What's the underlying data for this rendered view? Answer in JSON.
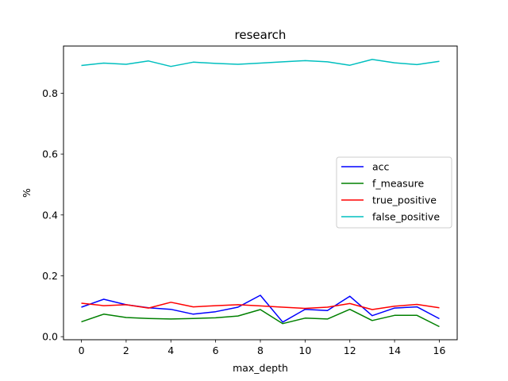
{
  "chart_data": {
    "type": "line",
    "title": "research",
    "xlabel": "max_depth",
    "ylabel": "%",
    "xlim": [
      -0.8,
      16.8
    ],
    "ylim": [
      -0.01,
      0.955
    ],
    "x_ticks": [
      0,
      2,
      4,
      6,
      8,
      10,
      12,
      14,
      16
    ],
    "y_ticks": [
      0.0,
      0.2,
      0.4,
      0.6,
      0.8
    ],
    "grid": false,
    "legend_position": "center-right",
    "x": [
      0,
      1,
      2,
      3,
      4,
      5,
      6,
      7,
      8,
      9,
      10,
      11,
      12,
      13,
      14,
      15,
      16
    ],
    "series": [
      {
        "name": "acc",
        "color": "#0000ff",
        "values": [
          0.097,
          0.123,
          0.105,
          0.095,
          0.09,
          0.074,
          0.082,
          0.097,
          0.136,
          0.048,
          0.09,
          0.086,
          0.133,
          0.069,
          0.094,
          0.098,
          0.059
        ]
      },
      {
        "name": "f_measure",
        "color": "#008000",
        "values": [
          0.049,
          0.074,
          0.063,
          0.06,
          0.058,
          0.06,
          0.062,
          0.068,
          0.089,
          0.043,
          0.061,
          0.058,
          0.09,
          0.053,
          0.07,
          0.07,
          0.033
        ]
      },
      {
        "name": "true_positive",
        "color": "#ff0000",
        "values": [
          0.11,
          0.102,
          0.105,
          0.094,
          0.113,
          0.098,
          0.102,
          0.105,
          0.101,
          0.097,
          0.093,
          0.097,
          0.109,
          0.089,
          0.1,
          0.106,
          0.095
        ]
      },
      {
        "name": "false_positive",
        "color": "#00bfbf",
        "values": [
          0.891,
          0.899,
          0.895,
          0.906,
          0.888,
          0.902,
          0.898,
          0.895,
          0.899,
          0.903,
          0.907,
          0.903,
          0.892,
          0.911,
          0.9,
          0.894,
          0.905
        ]
      }
    ]
  }
}
